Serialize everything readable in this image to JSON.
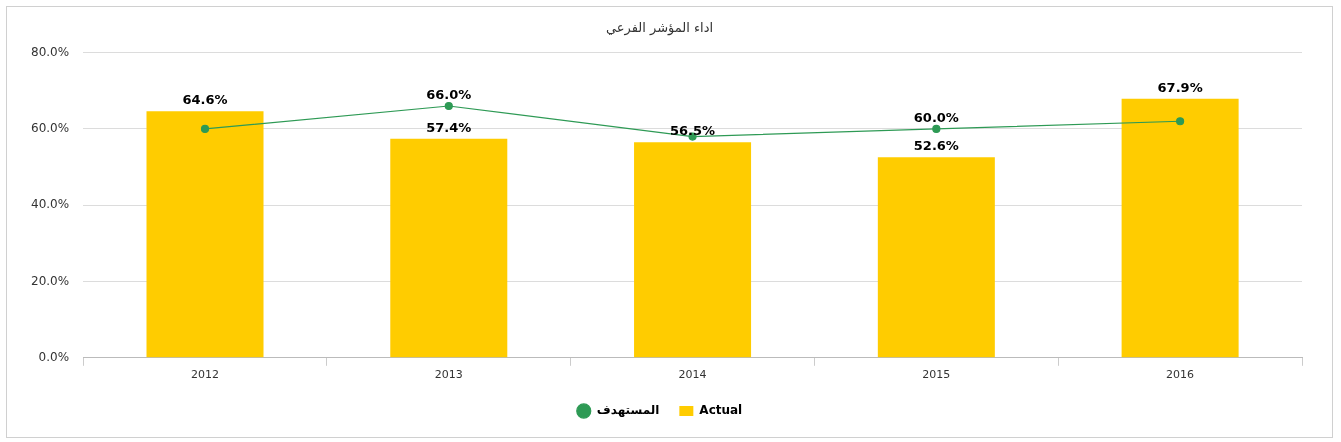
{
  "chart_data": {
    "type": "bar",
    "title": "اداء المؤشر الفرعي",
    "categories": [
      "2012",
      "2013",
      "2014",
      "2015",
      "2016"
    ],
    "series": [
      {
        "name": "Actual",
        "color": "#ffcc00",
        "values": [
          64.6,
          57.4,
          56.5,
          52.6,
          67.9
        ],
        "value_labels": [
          "64.6%",
          "57.4%",
          "56.5%",
          "52.6%",
          "67.9%"
        ]
      },
      {
        "name": "المستهدف",
        "type": "line",
        "color": "#2e9a55",
        "values": [
          60,
          66,
          58,
          60,
          62
        ],
        "value_labels": [
          null,
          "66.0%",
          null,
          "60.0%",
          null
        ],
        "marker": "circle"
      }
    ],
    "ylim": [
      0,
      80
    ],
    "yticks": [
      {
        "value": 0,
        "label": "0.0%"
      },
      {
        "value": 20,
        "label": "20.0%"
      },
      {
        "value": 40,
        "label": "40.0%"
      },
      {
        "value": 60,
        "label": "60.0%"
      },
      {
        "value": 80,
        "label": "80.0%"
      }
    ],
    "grid": "y",
    "legend": "bottom"
  }
}
